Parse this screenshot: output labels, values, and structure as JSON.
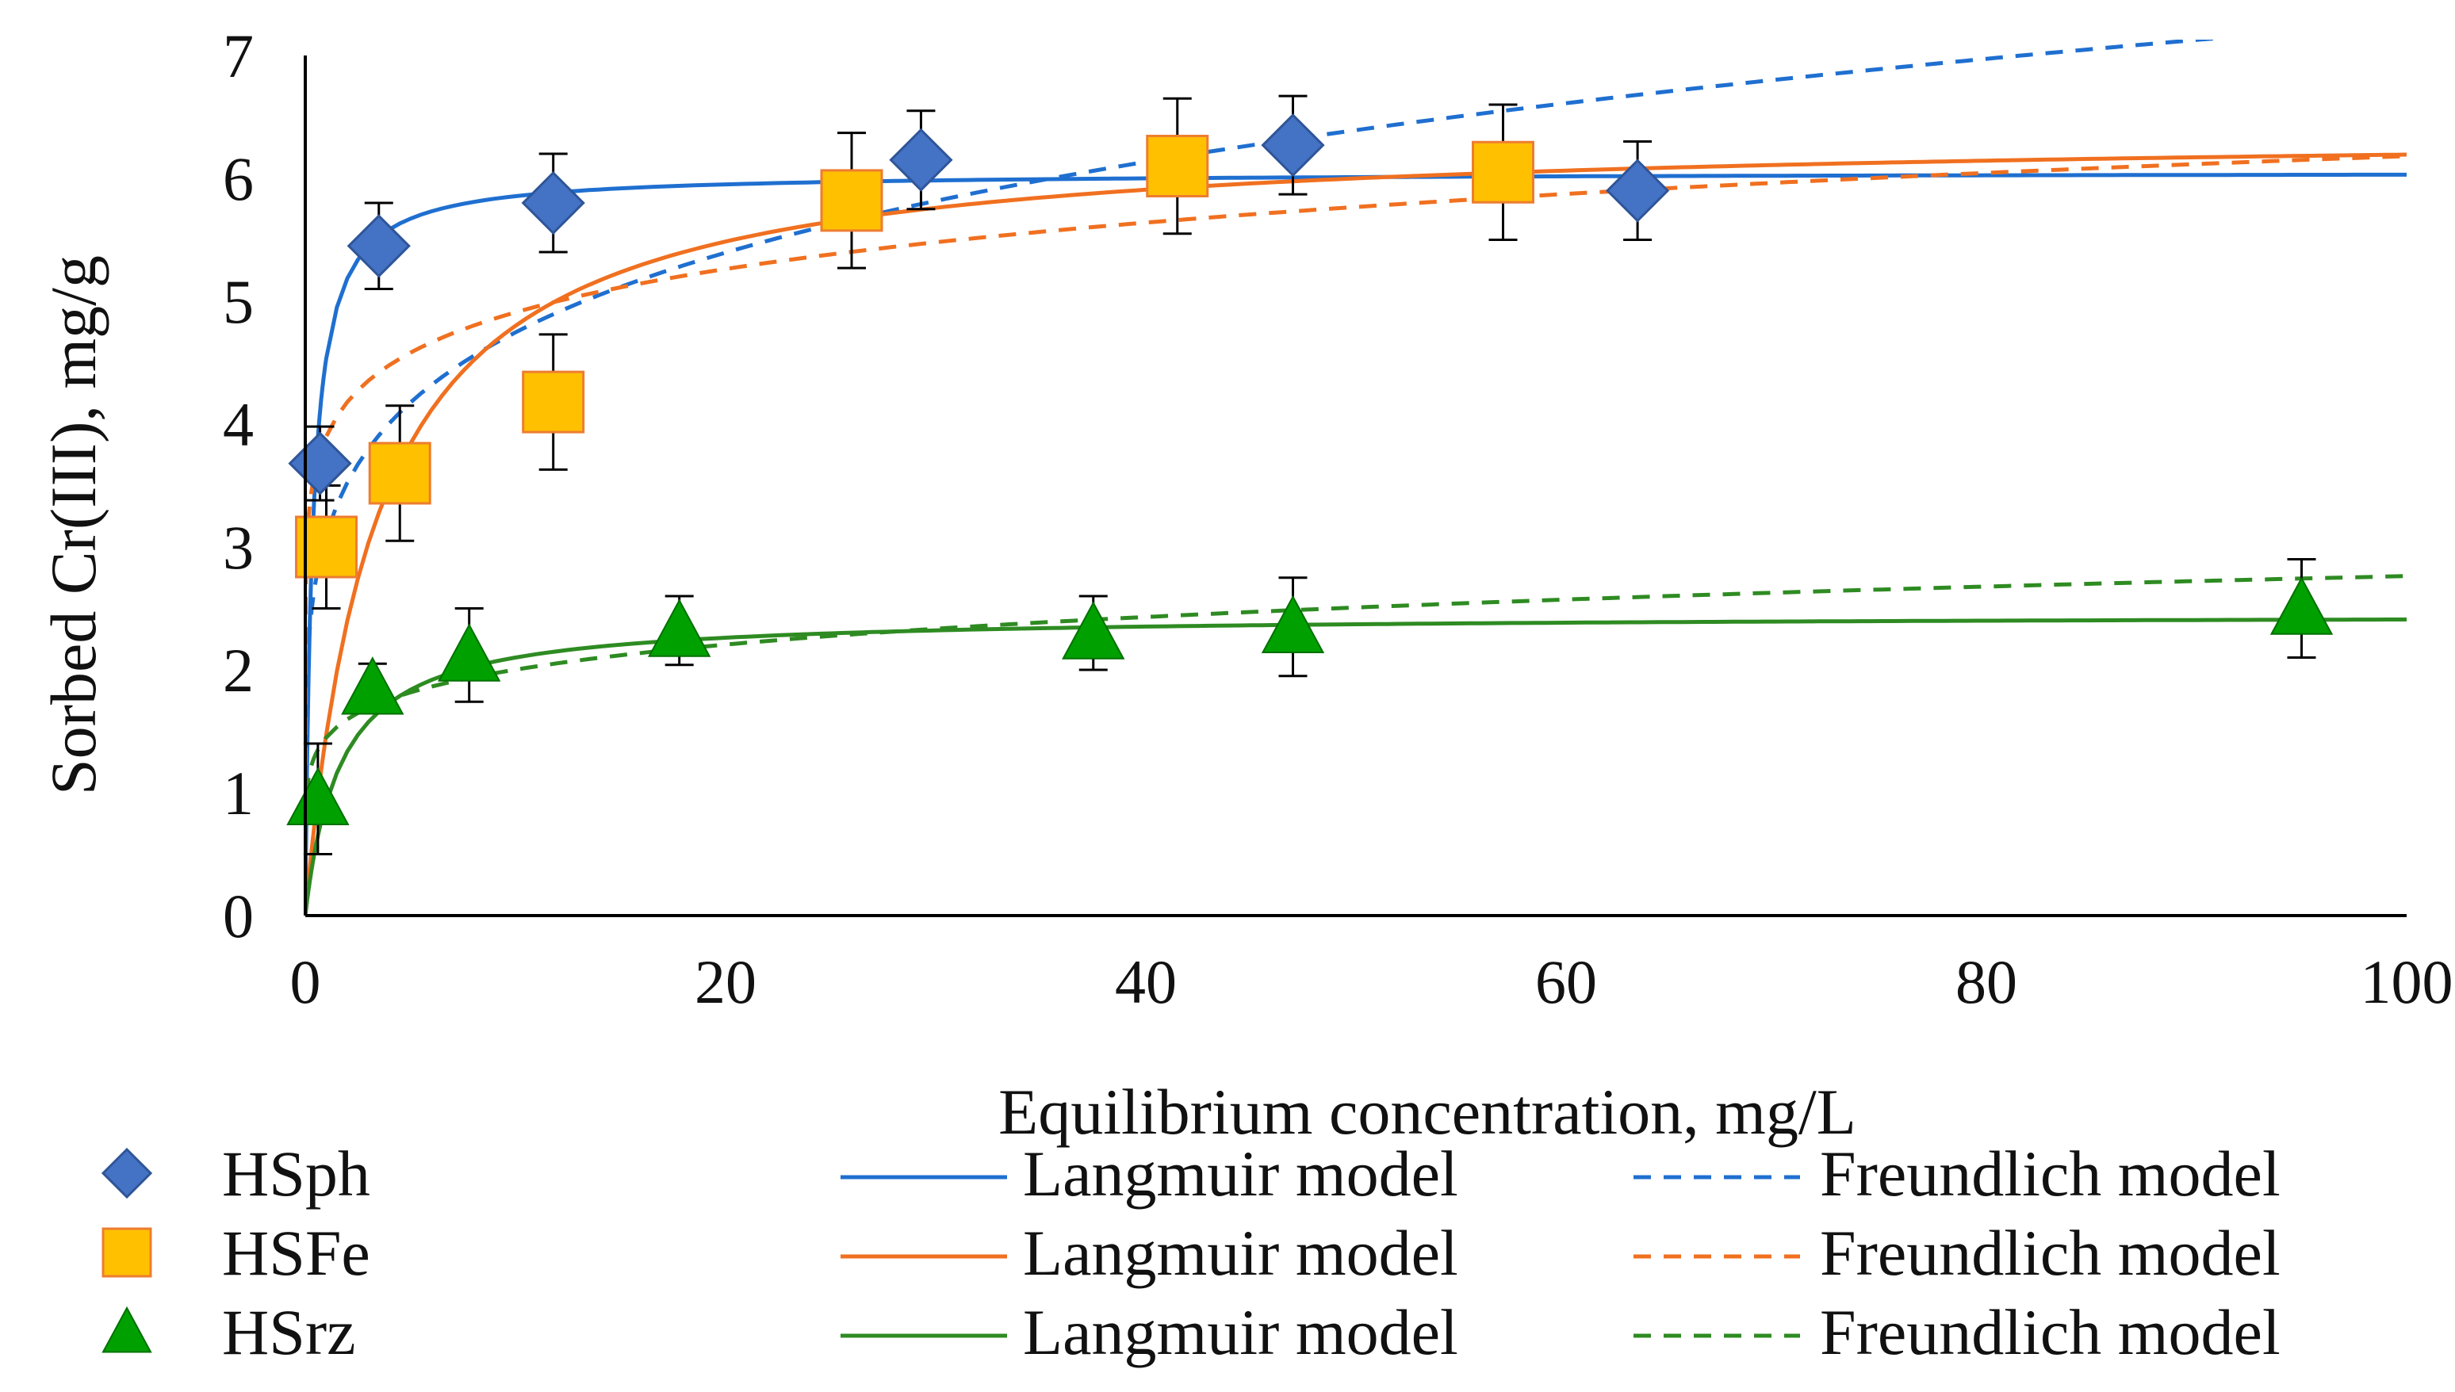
{
  "chart_data": {
    "type": "scatter",
    "title": "",
    "xlabel": "Equilibrium concentration, mg/L",
    "ylabel": "Sorbed Cr(III), mg/g",
    "xlim": [
      0,
      100
    ],
    "ylim": [
      0,
      7
    ],
    "x_ticks": [
      "0",
      "20",
      "40",
      "60",
      "80",
      "100"
    ],
    "y_ticks": [
      "0",
      "1",
      "2",
      "3",
      "4",
      "5",
      "6",
      "7"
    ],
    "grid": false,
    "legend_position": "bottom",
    "series": [
      {
        "name": "HSph",
        "color": "#4472C4",
        "marker": "diamond",
        "points": [
          {
            "x": 0.7,
            "y": 3.68,
            "err": 0.3
          },
          {
            "x": 3.5,
            "y": 5.45,
            "err": 0.35
          },
          {
            "x": 11.8,
            "y": 5.8,
            "err": 0.4
          },
          {
            "x": 29.3,
            "y": 6.15,
            "err": 0.4
          },
          {
            "x": 47.0,
            "y": 6.27,
            "err": 0.4
          },
          {
            "x": 63.4,
            "y": 5.9,
            "err": 0.4
          }
        ]
      },
      {
        "name": "HSFe",
        "color": "#FFC000",
        "marker": "square",
        "points": [
          {
            "x": 1.0,
            "y": 3.0,
            "err": 0.5
          },
          {
            "x": 4.5,
            "y": 3.6,
            "err": 0.55
          },
          {
            "x": 11.8,
            "y": 4.18,
            "err": 0.55
          },
          {
            "x": 26.0,
            "y": 5.82,
            "err": 0.55
          },
          {
            "x": 41.5,
            "y": 6.1,
            "err": 0.55
          },
          {
            "x": 57.0,
            "y": 6.05,
            "err": 0.55
          }
        ]
      },
      {
        "name": "HSrz",
        "color": "#00A000",
        "marker": "triangle",
        "points": [
          {
            "x": 0.6,
            "y": 0.95,
            "err": 0.45
          },
          {
            "x": 3.2,
            "y": 1.85,
            "err": 0.2
          },
          {
            "x": 7.8,
            "y": 2.12,
            "err": 0.38
          },
          {
            "x": 17.8,
            "y": 2.32,
            "err": 0.28
          },
          {
            "x": 37.5,
            "y": 2.3,
            "err": 0.3
          },
          {
            "x": 47.0,
            "y": 2.35,
            "err": 0.4
          },
          {
            "x": 95.0,
            "y": 2.5,
            "err": 0.4
          }
        ]
      }
    ],
    "models": [
      {
        "name": "Langmuir model",
        "fit_for": "HSph",
        "style": "solid",
        "color": "#1F6FD0",
        "qmax": 6.05,
        "KL": 3.0
      },
      {
        "name": "Freundlich model",
        "fit_for": "HSph",
        "style": "dashed",
        "color": "#1F6FD0",
        "KF": 3.1,
        "n": 0.185
      },
      {
        "name": "Langmuir model",
        "fit_for": "HSFe",
        "style": "solid",
        "color": "#F07020",
        "qmax": 6.4,
        "KL": 0.3
      },
      {
        "name": "Freundlich model",
        "fit_for": "HSFe",
        "style": "dashed",
        "color": "#F07020",
        "KF": 3.9,
        "n": 0.1
      },
      {
        "name": "Langmuir model",
        "fit_for": "HSrz",
        "style": "solid",
        "color": "#2E8B22",
        "qmax": 2.45,
        "KL": 0.6
      },
      {
        "name": "Freundlich model",
        "fit_for": "HSrz",
        "style": "dashed",
        "color": "#2E8B22",
        "KF": 1.45,
        "n": 0.14
      }
    ]
  },
  "legend": {
    "rows": [
      {
        "sample": "HSph",
        "langmuir": "Langmuir model",
        "freundlich": "Freundlich model"
      },
      {
        "sample": "HSFe",
        "langmuir": "Langmuir model",
        "freundlich": "Freundlich model"
      },
      {
        "sample": "HSrz",
        "langmuir": "Langmuir model",
        "freundlich": "Freundlich model"
      }
    ]
  }
}
